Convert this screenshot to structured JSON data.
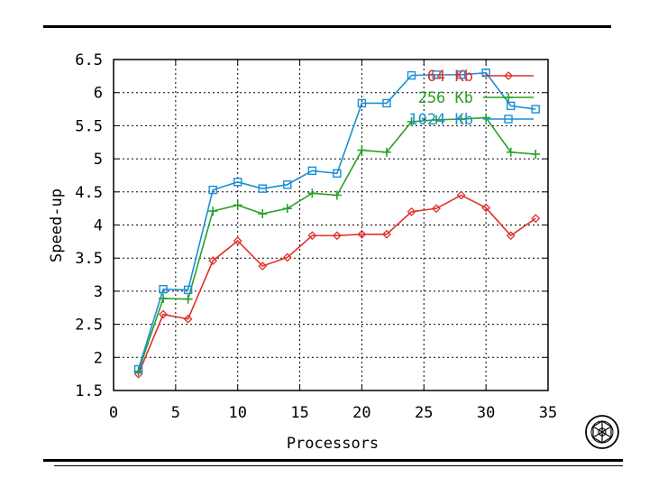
{
  "chart_data": {
    "type": "line",
    "xlabel": "Processors",
    "ylabel": "Speed-up",
    "xlim": [
      0,
      35
    ],
    "ylim": [
      1.5,
      6.5
    ],
    "xticks": [
      "0",
      "5",
      "10",
      "15",
      "20",
      "25",
      "30",
      "35"
    ],
    "yticks": [
      "1.5",
      "2",
      "2.5",
      "3",
      "3.5",
      "4",
      "4.5",
      "5",
      "5.5",
      "6",
      "6.5"
    ],
    "grid": true,
    "legend_position": "top-right",
    "series": [
      {
        "name": "64 Kb",
        "color": "#e0302a",
        "marker": "diamond",
        "x": [
          2,
          4,
          6,
          8,
          10,
          12,
          14,
          16,
          18,
          20,
          22,
          24,
          26,
          28,
          30,
          32,
          34
        ],
        "values": [
          1.75,
          2.65,
          2.58,
          3.46,
          3.76,
          3.38,
          3.51,
          3.84,
          3.84,
          3.86,
          3.86,
          4.2,
          4.25,
          4.45,
          4.26,
          3.84,
          4.1
        ]
      },
      {
        "name": "256 Kb",
        "color": "#27a127",
        "marker": "plus",
        "x": [
          2,
          4,
          6,
          8,
          10,
          12,
          14,
          16,
          18,
          20,
          22,
          24,
          26,
          28,
          30,
          32,
          34
        ],
        "values": [
          1.79,
          2.89,
          2.88,
          4.21,
          4.3,
          4.17,
          4.25,
          4.48,
          4.45,
          5.13,
          5.1,
          5.56,
          5.59,
          5.6,
          5.62,
          5.1,
          5.07
        ]
      },
      {
        "name": "1024 Kb",
        "color": "#1a8ed6",
        "marker": "square",
        "x": [
          2,
          4,
          6,
          8,
          10,
          12,
          14,
          16,
          18,
          20,
          22,
          24,
          26,
          28,
          30,
          32,
          34
        ],
        "values": [
          1.82,
          3.03,
          3.02,
          4.53,
          4.65,
          4.55,
          4.61,
          4.82,
          4.78,
          5.84,
          5.84,
          6.26,
          6.27,
          6.27,
          6.3,
          5.8,
          5.75
        ]
      }
    ]
  }
}
